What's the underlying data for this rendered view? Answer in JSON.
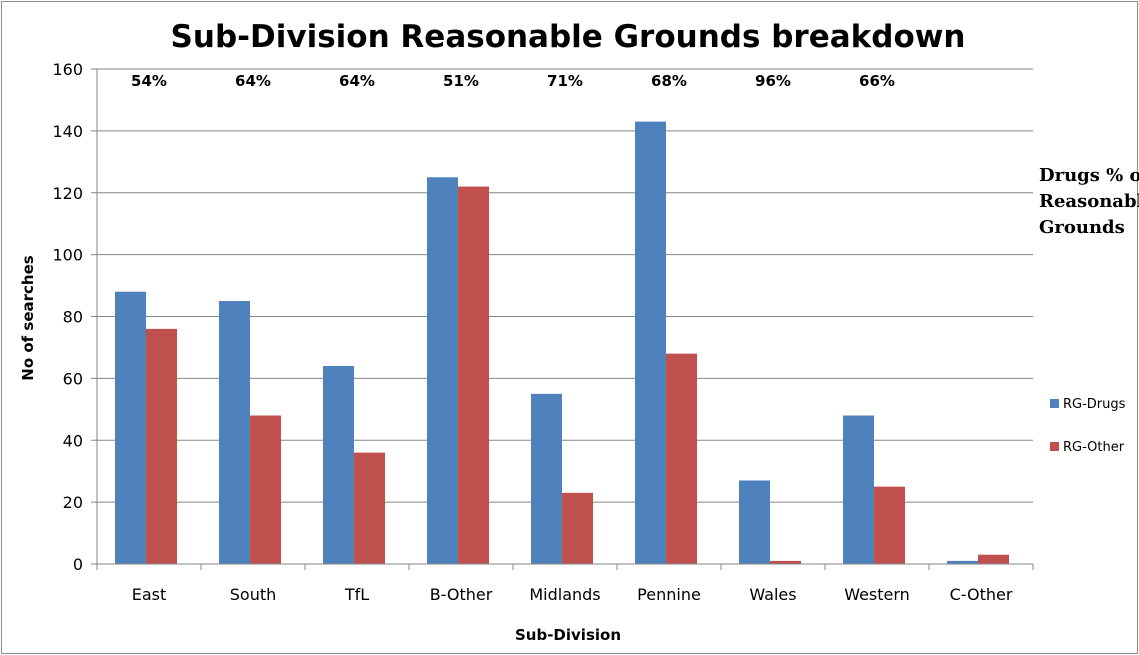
{
  "chart_data": {
    "type": "bar",
    "title": "Sub-Division Reasonable Grounds  breakdown",
    "xlabel": "Sub-Division",
    "ylabel": "No of searches",
    "ylim": [
      0,
      160
    ],
    "yticks": [
      0,
      20,
      40,
      60,
      80,
      100,
      120,
      140,
      160
    ],
    "grid": true,
    "legend_position": "right",
    "categories": [
      "East",
      "South",
      "TfL",
      "B-Other",
      "Midlands",
      "Pennine",
      "Wales",
      "Western",
      "C-Other"
    ],
    "series": [
      {
        "name": "RG-Drugs",
        "color": "#4F81BD",
        "values": [
          88,
          85,
          64,
          125,
          55,
          143,
          27,
          48,
          1
        ]
      },
      {
        "name": "RG-Other",
        "color": "#C0504D",
        "values": [
          76,
          48,
          36,
          122,
          23,
          68,
          1,
          25,
          3
        ]
      }
    ],
    "annotations": {
      "percent_labels": [
        "54%",
        "64%",
        "64%",
        "51%",
        "71%",
        "68%",
        "96%",
        "66%",
        ""
      ],
      "note_lines": [
        "Drugs % of",
        "Reasonable",
        "Grounds"
      ]
    }
  }
}
